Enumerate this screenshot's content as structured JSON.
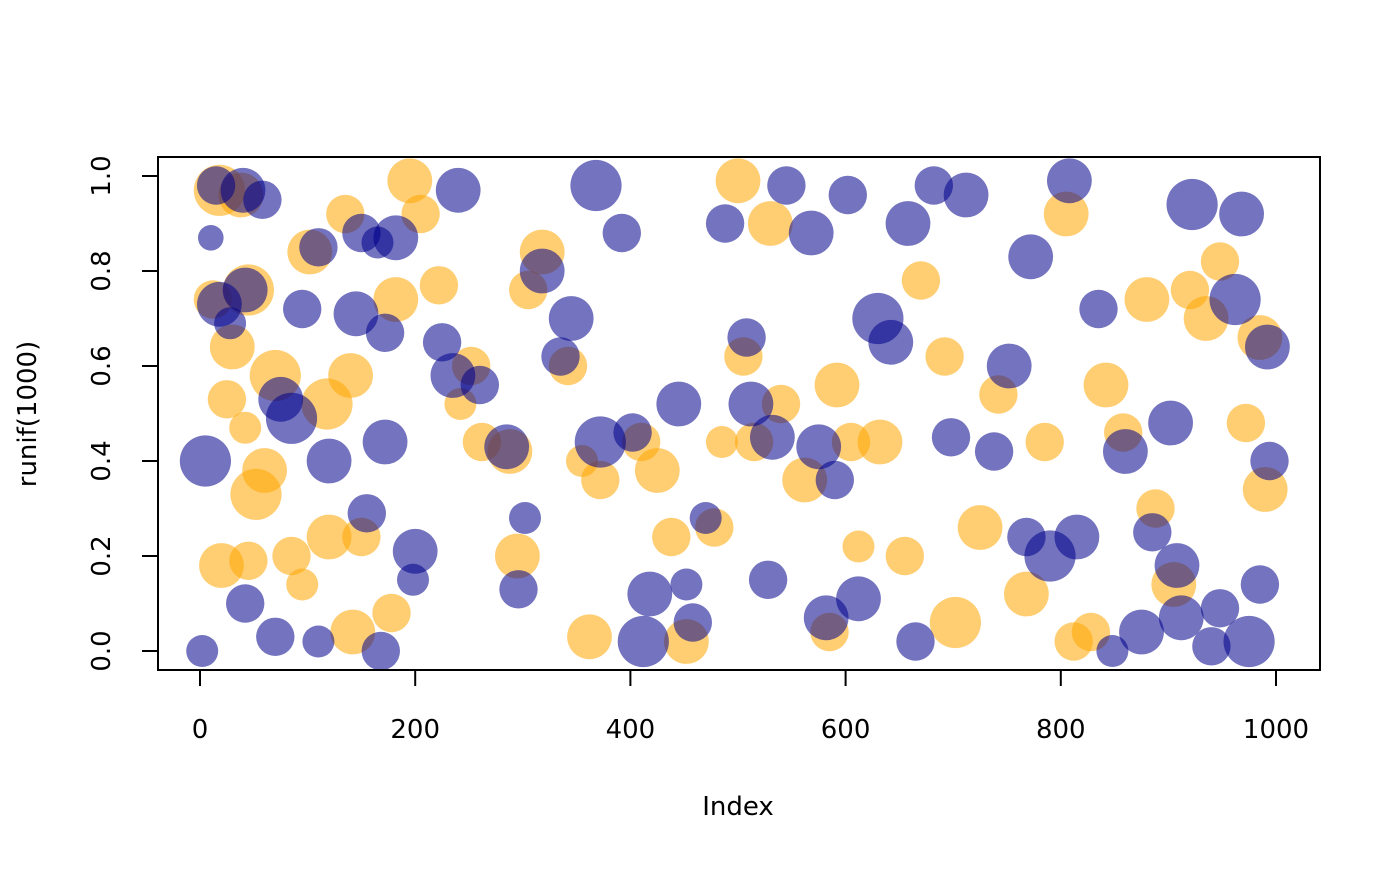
{
  "chart_data": {
    "type": "scatter",
    "title": "",
    "xlabel": "Index",
    "ylabel": "runif(1000)",
    "xlim": [
      0,
      1000
    ],
    "ylim": [
      0,
      1
    ],
    "x_ticks": [
      0,
      200,
      400,
      600,
      800,
      1000
    ],
    "y_ticks": [
      0.0,
      0.2,
      0.4,
      0.6,
      0.8,
      1.0
    ],
    "x_tick_labels": [
      "0",
      "200",
      "400",
      "600",
      "800",
      "1000"
    ],
    "y_tick_labels": [
      "0.0",
      "0.2",
      "0.4",
      "0.6",
      "0.8",
      "1.0"
    ],
    "grid": false,
    "legend": "none",
    "series": [
      {
        "color": "#FFA500",
        "opacity": 0.55,
        "points": [
          [
            18,
            0.97,
            8
          ],
          [
            38,
            0.96,
            7
          ],
          [
            12,
            0.74,
            6
          ],
          [
            45,
            0.76,
            8
          ],
          [
            30,
            0.64,
            7
          ],
          [
            70,
            0.58,
            8
          ],
          [
            25,
            0.53,
            6
          ],
          [
            42,
            0.47,
            5
          ],
          [
            60,
            0.38,
            7
          ],
          [
            52,
            0.33,
            8
          ],
          [
            20,
            0.18,
            7
          ],
          [
            45,
            0.19,
            6
          ],
          [
            85,
            0.2,
            6
          ],
          [
            95,
            0.14,
            5
          ],
          [
            120,
            0.24,
            7
          ],
          [
            150,
            0.24,
            6
          ],
          [
            178,
            0.08,
            6
          ],
          [
            142,
            0.04,
            7
          ],
          [
            118,
            0.52,
            8
          ],
          [
            140,
            0.58,
            7
          ],
          [
            102,
            0.84,
            7
          ],
          [
            135,
            0.92,
            6
          ],
          [
            195,
            0.99,
            7
          ],
          [
            205,
            0.92,
            6
          ],
          [
            182,
            0.74,
            7
          ],
          [
            222,
            0.77,
            6
          ],
          [
            252,
            0.6,
            6
          ],
          [
            242,
            0.52,
            5
          ],
          [
            262,
            0.44,
            6
          ],
          [
            288,
            0.42,
            7
          ],
          [
            295,
            0.2,
            7
          ],
          [
            318,
            0.84,
            7
          ],
          [
            305,
            0.76,
            6
          ],
          [
            342,
            0.6,
            6
          ],
          [
            355,
            0.4,
            5
          ],
          [
            372,
            0.36,
            6
          ],
          [
            362,
            0.03,
            7
          ],
          [
            410,
            0.44,
            6
          ],
          [
            425,
            0.38,
            7
          ],
          [
            452,
            0.02,
            7
          ],
          [
            438,
            0.24,
            6
          ],
          [
            478,
            0.26,
            6
          ],
          [
            485,
            0.44,
            5
          ],
          [
            500,
            0.99,
            7
          ],
          [
            505,
            0.62,
            6
          ],
          [
            515,
            0.44,
            6
          ],
          [
            530,
            0.9,
            7
          ],
          [
            540,
            0.52,
            6
          ],
          [
            562,
            0.36,
            7
          ],
          [
            585,
            0.04,
            6
          ],
          [
            592,
            0.56,
            7
          ],
          [
            605,
            0.44,
            6
          ],
          [
            612,
            0.22,
            5
          ],
          [
            632,
            0.44,
            7
          ],
          [
            655,
            0.2,
            6
          ],
          [
            670,
            0.78,
            6
          ],
          [
            692,
            0.62,
            6
          ],
          [
            702,
            0.06,
            8
          ],
          [
            725,
            0.26,
            7
          ],
          [
            742,
            0.54,
            6
          ],
          [
            768,
            0.12,
            7
          ],
          [
            785,
            0.44,
            6
          ],
          [
            805,
            0.92,
            7
          ],
          [
            812,
            0.02,
            6
          ],
          [
            828,
            0.04,
            6
          ],
          [
            842,
            0.56,
            7
          ],
          [
            858,
            0.46,
            6
          ],
          [
            880,
            0.74,
            7
          ],
          [
            888,
            0.3,
            6
          ],
          [
            905,
            0.14,
            7
          ],
          [
            920,
            0.76,
            6
          ],
          [
            935,
            0.7,
            7
          ],
          [
            948,
            0.82,
            6
          ],
          [
            972,
            0.48,
            6
          ],
          [
            985,
            0.66,
            7
          ],
          [
            990,
            0.34,
            7
          ]
        ]
      },
      {
        "color": "#00008B",
        "opacity": 0.55,
        "points": [
          [
            2,
            0.0,
            5
          ],
          [
            5,
            0.4,
            8
          ],
          [
            15,
            0.98,
            6
          ],
          [
            10,
            0.87,
            4
          ],
          [
            40,
            0.97,
            7
          ],
          [
            58,
            0.95,
            6
          ],
          [
            18,
            0.73,
            7
          ],
          [
            28,
            0.69,
            5
          ],
          [
            42,
            0.76,
            7
          ],
          [
            75,
            0.53,
            7
          ],
          [
            85,
            0.49,
            8
          ],
          [
            95,
            0.72,
            6
          ],
          [
            110,
            0.85,
            6
          ],
          [
            120,
            0.4,
            7
          ],
          [
            145,
            0.71,
            7
          ],
          [
            150,
            0.88,
            6
          ],
          [
            165,
            0.86,
            5
          ],
          [
            172,
            0.67,
            6
          ],
          [
            182,
            0.87,
            7
          ],
          [
            200,
            0.21,
            7
          ],
          [
            198,
            0.15,
            5
          ],
          [
            168,
            0.0,
            6
          ],
          [
            155,
            0.29,
            6
          ],
          [
            172,
            0.44,
            7
          ],
          [
            42,
            0.1,
            6
          ],
          [
            70,
            0.03,
            6
          ],
          [
            110,
            0.02,
            5
          ],
          [
            240,
            0.97,
            7
          ],
          [
            225,
            0.65,
            6
          ],
          [
            235,
            0.58,
            7
          ],
          [
            260,
            0.56,
            6
          ],
          [
            285,
            0.43,
            7
          ],
          [
            296,
            0.13,
            6
          ],
          [
            302,
            0.28,
            5
          ],
          [
            318,
            0.8,
            7
          ],
          [
            335,
            0.62,
            6
          ],
          [
            345,
            0.7,
            7
          ],
          [
            368,
            0.98,
            8
          ],
          [
            372,
            0.44,
            8
          ],
          [
            392,
            0.88,
            6
          ],
          [
            402,
            0.46,
            6
          ],
          [
            418,
            0.12,
            7
          ],
          [
            412,
            0.02,
            8
          ],
          [
            445,
            0.52,
            7
          ],
          [
            452,
            0.14,
            5
          ],
          [
            458,
            0.06,
            6
          ],
          [
            470,
            0.28,
            5
          ],
          [
            488,
            0.9,
            6
          ],
          [
            508,
            0.66,
            6
          ],
          [
            512,
            0.52,
            7
          ],
          [
            528,
            0.15,
            6
          ],
          [
            532,
            0.45,
            7
          ],
          [
            545,
            0.98,
            6
          ],
          [
            568,
            0.88,
            7
          ],
          [
            575,
            0.43,
            7
          ],
          [
            582,
            0.07,
            7
          ],
          [
            590,
            0.36,
            6
          ],
          [
            602,
            0.96,
            6
          ],
          [
            612,
            0.11,
            7
          ],
          [
            630,
            0.7,
            8
          ],
          [
            642,
            0.65,
            7
          ],
          [
            658,
            0.9,
            7
          ],
          [
            665,
            0.02,
            6
          ],
          [
            682,
            0.98,
            6
          ],
          [
            698,
            0.45,
            6
          ],
          [
            712,
            0.96,
            7
          ],
          [
            738,
            0.42,
            6
          ],
          [
            752,
            0.6,
            7
          ],
          [
            768,
            0.24,
            6
          ],
          [
            772,
            0.83,
            7
          ],
          [
            790,
            0.2,
            8
          ],
          [
            808,
            0.99,
            7
          ],
          [
            815,
            0.24,
            7
          ],
          [
            835,
            0.72,
            6
          ],
          [
            848,
            0.0,
            5
          ],
          [
            860,
            0.42,
            7
          ],
          [
            875,
            0.04,
            7
          ],
          [
            885,
            0.25,
            6
          ],
          [
            902,
            0.48,
            7
          ],
          [
            908,
            0.18,
            7
          ],
          [
            912,
            0.07,
            7
          ],
          [
            922,
            0.94,
            8
          ],
          [
            940,
            0.01,
            6
          ],
          [
            948,
            0.09,
            6
          ],
          [
            962,
            0.74,
            8
          ],
          [
            968,
            0.92,
            7
          ],
          [
            975,
            0.02,
            8
          ],
          [
            985,
            0.14,
            6
          ],
          [
            992,
            0.64,
            7
          ],
          [
            994,
            0.4,
            6
          ]
        ]
      }
    ]
  }
}
